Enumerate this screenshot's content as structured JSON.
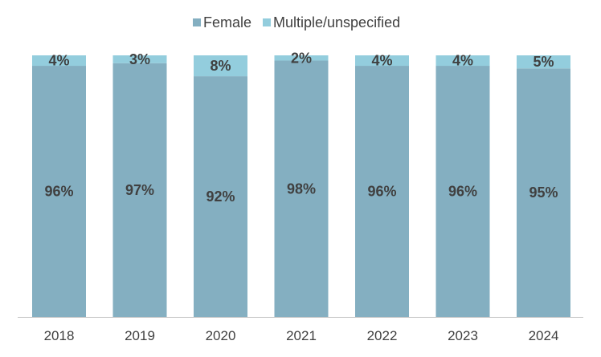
{
  "chart_data": {
    "type": "bar",
    "stacked": true,
    "stack_mode": "percent",
    "categories": [
      "2018",
      "2019",
      "2020",
      "2021",
      "2022",
      "2023",
      "2024"
    ],
    "series": [
      {
        "name": "Female",
        "values": [
          96,
          97,
          92,
          98,
          96,
          96,
          95
        ],
        "color": "#84AFC1"
      },
      {
        "name": "Multiple/unspecified",
        "values": [
          4,
          3,
          8,
          2,
          4,
          4,
          5
        ],
        "color": "#93CDDD"
      }
    ],
    "data_labels": {
      "Female": [
        "96%",
        "97%",
        "92%",
        "98%",
        "96%",
        "96%",
        "95%"
      ],
      "Multiple/unspecified": [
        "4%",
        "3%",
        "8%",
        "2%",
        "4%",
        "4%",
        "5%"
      ]
    },
    "ylim": [
      0,
      100
    ],
    "grid": false,
    "legend_position": "top-center"
  }
}
